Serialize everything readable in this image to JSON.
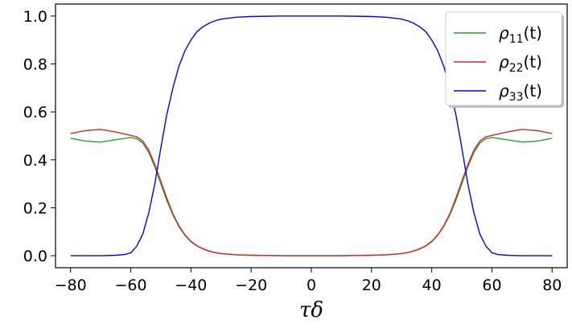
{
  "chart_data": {
    "type": "line",
    "title": "",
    "xlabel": "τδ",
    "ylabel": "",
    "xlim": [
      -85,
      85
    ],
    "ylim": [
      -0.05,
      1.05
    ],
    "x_ticks": [
      -80,
      -60,
      -40,
      -20,
      0,
      20,
      40,
      60,
      80
    ],
    "x_tick_labels": [
      "−80",
      "−60",
      "−40",
      "−20",
      "0",
      "20",
      "40",
      "60",
      "80"
    ],
    "y_ticks": [
      0.0,
      0.2,
      0.4,
      0.6,
      0.8,
      1.0
    ],
    "y_tick_labels": [
      "0.0",
      "0.2",
      "0.4",
      "0.6",
      "0.8",
      "1.0"
    ],
    "grid": false,
    "legend_position": "top-right",
    "series": [
      {
        "name": "ρ11(t)",
        "label_main": "ρ",
        "label_sub": "11",
        "label_suffix": "(t)",
        "color": "#2ca02c",
        "x": [
          -80,
          -75,
          -70,
          -65,
          -60,
          -58,
          -56,
          -54,
          -52,
          -50,
          -48,
          -46,
          -44,
          -42,
          -40,
          -38,
          -36,
          -34,
          -32,
          -30,
          -25,
          -20,
          -10,
          0,
          10,
          20,
          25,
          30,
          32,
          34,
          36,
          38,
          40,
          42,
          44,
          46,
          48,
          50,
          52,
          54,
          56,
          58,
          60,
          65,
          70,
          75,
          80
        ],
        "y": [
          0.49,
          0.478,
          0.474,
          0.484,
          0.493,
          0.488,
          0.47,
          0.43,
          0.37,
          0.3,
          0.23,
          0.17,
          0.122,
          0.085,
          0.058,
          0.04,
          0.028,
          0.019,
          0.013,
          0.009,
          0.004,
          0.002,
          0.0,
          0.0,
          0.0,
          0.002,
          0.004,
          0.009,
          0.013,
          0.019,
          0.028,
          0.04,
          0.058,
          0.085,
          0.122,
          0.17,
          0.23,
          0.3,
          0.37,
          0.43,
          0.47,
          0.488,
          0.493,
          0.484,
          0.474,
          0.478,
          0.49
        ]
      },
      {
        "name": "ρ22(t)",
        "label_main": "ρ",
        "label_sub": "22",
        "label_suffix": "(t)",
        "color": "#d62728",
        "x": [
          -80,
          -75,
          -70,
          -65,
          -60,
          -58,
          -56,
          -54,
          -52,
          -50,
          -48,
          -46,
          -44,
          -42,
          -40,
          -38,
          -36,
          -34,
          -32,
          -30,
          -25,
          -20,
          -10,
          0,
          10,
          20,
          25,
          30,
          32,
          34,
          36,
          38,
          40,
          42,
          44,
          46,
          48,
          50,
          52,
          54,
          56,
          58,
          60,
          65,
          70,
          75,
          80
        ],
        "y": [
          0.51,
          0.522,
          0.527,
          0.516,
          0.502,
          0.496,
          0.478,
          0.44,
          0.38,
          0.31,
          0.24,
          0.175,
          0.125,
          0.087,
          0.06,
          0.041,
          0.029,
          0.02,
          0.013,
          0.009,
          0.004,
          0.002,
          0.0,
          0.0,
          0.0,
          0.002,
          0.004,
          0.009,
          0.013,
          0.02,
          0.029,
          0.041,
          0.06,
          0.087,
          0.125,
          0.175,
          0.24,
          0.31,
          0.38,
          0.44,
          0.478,
          0.496,
          0.502,
          0.516,
          0.527,
          0.522,
          0.51
        ]
      },
      {
        "name": "ρ33(t)",
        "label_main": "ρ",
        "label_sub": "33",
        "label_suffix": "(t)",
        "color": "#0000ff",
        "x": [
          -80,
          -75,
          -70,
          -65,
          -62,
          -60,
          -58,
          -56,
          -54,
          -52,
          -50,
          -48,
          -46,
          -44,
          -42,
          -40,
          -38,
          -36,
          -34,
          -32,
          -30,
          -25,
          -20,
          -10,
          0,
          10,
          20,
          25,
          30,
          32,
          34,
          36,
          38,
          40,
          42,
          44,
          46,
          48,
          50,
          52,
          54,
          56,
          58,
          60,
          62,
          65,
          70,
          75,
          80
        ],
        "y": [
          0.0,
          0.0,
          0.0,
          0.002,
          0.005,
          0.012,
          0.04,
          0.09,
          0.18,
          0.3,
          0.45,
          0.59,
          0.7,
          0.79,
          0.855,
          0.9,
          0.935,
          0.955,
          0.97,
          0.98,
          0.987,
          0.995,
          0.998,
          1.0,
          1.0,
          1.0,
          0.998,
          0.995,
          0.987,
          0.98,
          0.97,
          0.955,
          0.935,
          0.9,
          0.855,
          0.79,
          0.7,
          0.59,
          0.45,
          0.3,
          0.18,
          0.09,
          0.04,
          0.012,
          0.005,
          0.002,
          0.0,
          0.0,
          0.0
        ]
      }
    ]
  }
}
